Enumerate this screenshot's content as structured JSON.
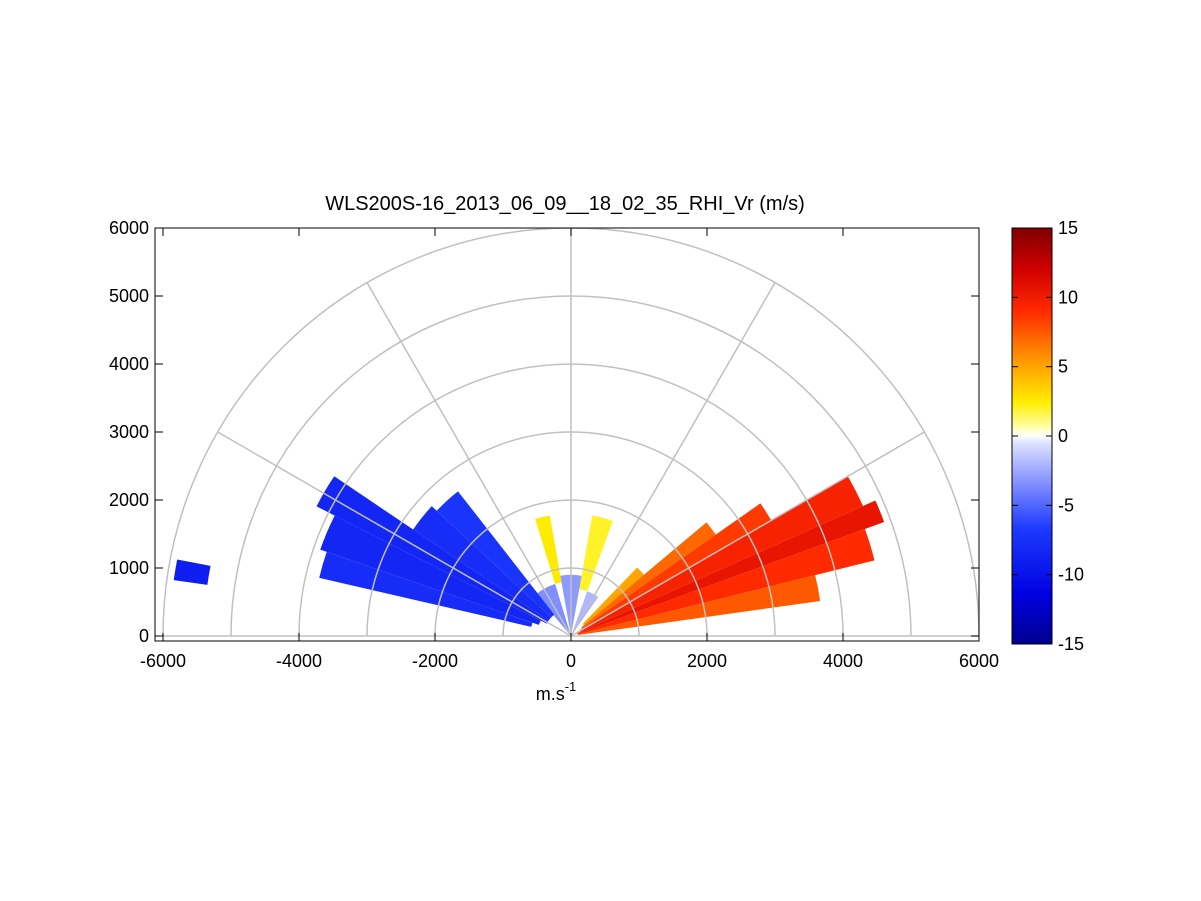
{
  "chart_data": {
    "type": "heatmap",
    "subtype": "polar-rhi-sector",
    "title": "WLS200S-16_2013_06_09__18_02_35_RHI_Vr (m/s)",
    "xlabel": "m.s",
    "xlabel_superscript": "-1",
    "ylabel": "",
    "xlim": [
      -6000,
      6000
    ],
    "ylim": [
      0,
      6000
    ],
    "x_ticks": [
      "-6000",
      "-4000",
      "-2000",
      "0",
      "2000",
      "4000",
      "6000"
    ],
    "y_ticks": [
      "0",
      "1000",
      "2000",
      "3000",
      "4000",
      "5000",
      "6000"
    ],
    "grid": true,
    "polar_rings": [
      1000,
      2000,
      3000,
      4000,
      5000,
      6000
    ],
    "polar_spokes_deg": [
      0,
      30,
      60,
      90,
      120,
      150,
      180
    ],
    "colorbar": {
      "range": [
        -15,
        15
      ],
      "ticks": [
        "15",
        "10",
        "5",
        "0",
        "-5",
        "-10",
        "-15"
      ],
      "placement": "right"
    },
    "sectors": [
      {
        "angle_from": 8,
        "angle_to": 14,
        "range_from": 100,
        "range_to": 3700,
        "value": 7.5
      },
      {
        "angle_from": 14,
        "angle_to": 20,
        "range_from": 100,
        "range_to": 4600,
        "value": 9
      },
      {
        "angle_from": 20,
        "angle_to": 24,
        "range_from": 100,
        "range_to": 4900,
        "value": 10.5
      },
      {
        "angle_from": 24,
        "angle_to": 30,
        "range_from": 150,
        "range_to": 4700,
        "value": 9.5
      },
      {
        "angle_from": 30,
        "angle_to": 35,
        "range_from": 150,
        "range_to": 3400,
        "value": 8.5
      },
      {
        "angle_from": 35,
        "angle_to": 40,
        "range_from": 200,
        "range_to": 2600,
        "value": 7
      },
      {
        "angle_from": 40,
        "angle_to": 46,
        "range_from": 250,
        "range_to": 1400,
        "value": 5
      },
      {
        "angle_from": 55,
        "angle_to": 70,
        "range_from": 0,
        "range_to": 700,
        "value": -2
      },
      {
        "angle_from": 70,
        "angle_to": 80,
        "range_from": 700,
        "range_to": 1800,
        "value": 2
      },
      {
        "angle_from": 80,
        "angle_to": 100,
        "range_from": 0,
        "range_to": 900,
        "value": -3
      },
      {
        "angle_from": 100,
        "angle_to": 107,
        "range_from": 800,
        "range_to": 1800,
        "value": 2.5
      },
      {
        "angle_from": 107,
        "angle_to": 130,
        "range_from": 0,
        "range_to": 800,
        "value": -3.5
      },
      {
        "angle_from": 128,
        "angle_to": 137,
        "range_from": 400,
        "range_to": 2700,
        "value": -7.5
      },
      {
        "angle_from": 137,
        "angle_to": 146,
        "range_from": 400,
        "range_to": 2800,
        "value": -8
      },
      {
        "angle_from": 146,
        "angle_to": 153,
        "range_from": 400,
        "range_to": 4200,
        "value": -8.5
      },
      {
        "angle_from": 153,
        "angle_to": 161,
        "range_from": 500,
        "range_to": 3900,
        "value": -8.5
      },
      {
        "angle_from": 161,
        "angle_to": 167,
        "range_from": 600,
        "range_to": 3800,
        "value": -8
      },
      {
        "angle_from": 169,
        "angle_to": 172,
        "range_from": 5400,
        "range_to": 5900,
        "value": -9
      }
    ]
  }
}
